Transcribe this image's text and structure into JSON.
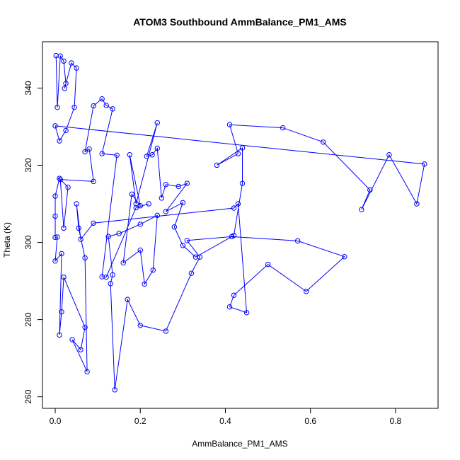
{
  "chart_data": {
    "type": "line",
    "title": "ATOM3 Southbound AmmBalance_PM1_AMS",
    "xlabel": "AmmBalance_PM1_AMS",
    "ylabel": "Theta (K)",
    "xlim": [
      -0.03,
      0.9
    ],
    "ylim": [
      257,
      352
    ],
    "xticks": [
      0.0,
      0.2,
      0.4,
      0.6,
      0.8
    ],
    "xtick_labels": [
      "0.0",
      "0.2",
      "0.4",
      "0.6",
      "0.8"
    ],
    "yticks": [
      260,
      280,
      300,
      320,
      340
    ],
    "ytick_labels": [
      "260",
      "280",
      "300",
      "320",
      "340"
    ],
    "grid": false,
    "legend": "none",
    "marker": "open-circle",
    "series_color": "#0000ff",
    "series": [
      {
        "points": [
          [
            0.002,
            348.4
          ],
          [
            0.005,
            335.0
          ],
          [
            0.012,
            348.3
          ],
          [
            0.02,
            347.0
          ],
          [
            0.025,
            341.2
          ],
          [
            0.022,
            339.9
          ],
          [
            0.038,
            346.5
          ],
          [
            0.05,
            345.2
          ],
          [
            0.045,
            335.0
          ],
          [
            0.025,
            329.0
          ],
          [
            0.01,
            326.3
          ],
          [
            0.0,
            330.2
          ],
          [
            0.868,
            320.3
          ],
          [
            0.85,
            310.0
          ],
          [
            0.785,
            322.7
          ],
          [
            0.72,
            308.5
          ],
          [
            0.74,
            313.6
          ],
          [
            0.63,
            326.0
          ],
          [
            0.535,
            329.7
          ],
          [
            0.41,
            330.5
          ],
          [
            0.43,
            323.0
          ],
          [
            0.38,
            320.0
          ],
          [
            0.44,
            324.5
          ],
          [
            0.44,
            315.3
          ],
          [
            0.42,
            301.8
          ],
          [
            0.33,
            296.2
          ],
          [
            0.3,
            299.2
          ],
          [
            0.28,
            304.0
          ],
          [
            0.3,
            310.3
          ],
          [
            0.26,
            308.0
          ],
          [
            0.31,
            315.3
          ],
          [
            0.29,
            314.5
          ],
          [
            0.26,
            315.0
          ],
          [
            0.25,
            311.5
          ],
          [
            0.24,
            324.4
          ],
          [
            0.228,
            322.7
          ],
          [
            0.215,
            322.3
          ],
          [
            0.24,
            331.0
          ],
          [
            0.19,
            310.0
          ],
          [
            0.175,
            322.7
          ],
          [
            0.2,
            309.5
          ],
          [
            0.18,
            312.5
          ],
          [
            0.16,
            294.7
          ],
          [
            0.2,
            298.0
          ],
          [
            0.21,
            289.2
          ],
          [
            0.23,
            292.8
          ],
          [
            0.24,
            307.0
          ],
          [
            0.2,
            304.7
          ],
          [
            0.15,
            302.3
          ],
          [
            0.125,
            301.5
          ],
          [
            0.135,
            291.6
          ],
          [
            0.13,
            289.3
          ],
          [
            0.14,
            261.8
          ],
          [
            0.17,
            285.2
          ],
          [
            0.2,
            278.5
          ],
          [
            0.26,
            277.0
          ],
          [
            0.32,
            292.0
          ],
          [
            0.34,
            296.2
          ],
          [
            0.31,
            300.5
          ],
          [
            0.415,
            301.5
          ],
          [
            0.57,
            300.4
          ],
          [
            0.68,
            296.3
          ],
          [
            0.59,
            287.3
          ],
          [
            0.5,
            294.3
          ],
          [
            0.42,
            286.3
          ],
          [
            0.41,
            283.3
          ],
          [
            0.45,
            281.8
          ],
          [
            0.43,
            310.0
          ],
          [
            0.42,
            308.9
          ],
          [
            0.09,
            305.0
          ],
          [
            0.06,
            300.8
          ],
          [
            0.05,
            310.0
          ],
          [
            0.055,
            303.7
          ],
          [
            0.07,
            296.0
          ],
          [
            0.075,
            266.5
          ],
          [
            0.04,
            274.8
          ],
          [
            0.06,
            272.2
          ],
          [
            0.07,
            278.0
          ],
          [
            0.02,
            291.0
          ],
          [
            0.015,
            282.0
          ],
          [
            0.01,
            276.0
          ],
          [
            0.015,
            297.1
          ],
          [
            0.0,
            295.2
          ],
          [
            0.005,
            301.4
          ],
          [
            0.0,
            301.3
          ],
          [
            0.0,
            306.8
          ],
          [
            0.0,
            312.0
          ],
          [
            0.01,
            316.6
          ],
          [
            0.03,
            314.3
          ],
          [
            0.02,
            303.7
          ],
          [
            0.012,
            316.3
          ],
          [
            0.09,
            315.8
          ],
          [
            0.08,
            324.2
          ],
          [
            0.07,
            323.5
          ],
          [
            0.09,
            335.4
          ],
          [
            0.11,
            337.2
          ],
          [
            0.12,
            335.5
          ],
          [
            0.135,
            334.6
          ],
          [
            0.11,
            323.0
          ],
          [
            0.145,
            322.6
          ],
          [
            0.11,
            291.1
          ],
          [
            0.12,
            291.0
          ],
          [
            0.19,
            309.0
          ],
          [
            0.22,
            310.0
          ]
        ]
      }
    ]
  }
}
